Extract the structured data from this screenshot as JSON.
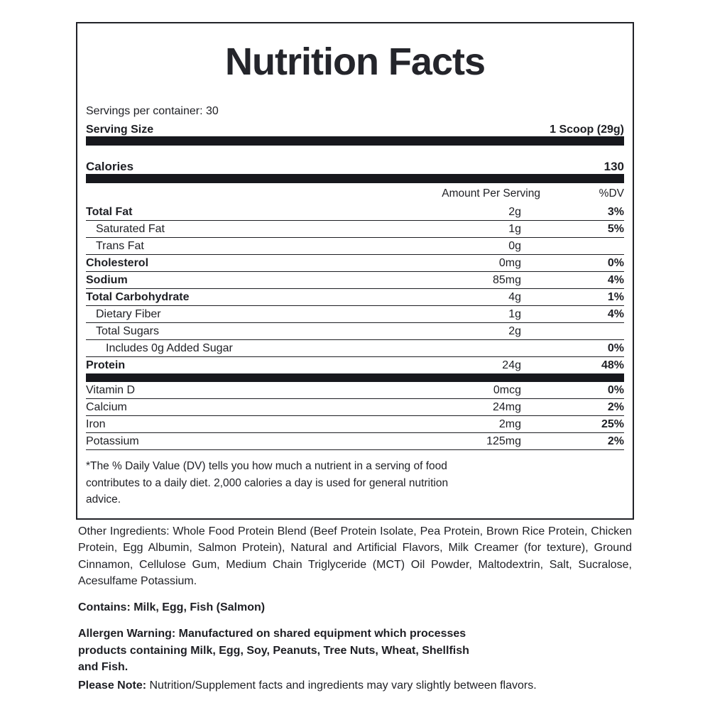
{
  "label": {
    "title": "Nutrition Facts",
    "servings_per_container": "Servings per container: 30",
    "serving_size_label": "Serving Size",
    "serving_size_value": "1 Scoop (29g)",
    "calories_label": "Calories",
    "calories_value": "130",
    "columns": {
      "amount_header": "Amount Per Serving",
      "dv_header": "%DV"
    },
    "nutrients": [
      {
        "name": "Total Fat",
        "amount": "2g",
        "dv": "3%",
        "bold": true,
        "indent": 0
      },
      {
        "name": "Saturated Fat",
        "amount": "1g",
        "dv": "5%",
        "bold": false,
        "indent": 1
      },
      {
        "name": "Trans Fat",
        "amount": "0g",
        "dv": "",
        "bold": false,
        "indent": 1
      },
      {
        "name": "Cholesterol",
        "amount": "0mg",
        "dv": "0%",
        "bold": true,
        "indent": 0
      },
      {
        "name": "Sodium",
        "amount": "85mg",
        "dv": "4%",
        "bold": true,
        "indent": 0
      },
      {
        "name": "Total Carbohydrate",
        "amount": "4g",
        "dv": "1%",
        "bold": true,
        "indent": 0
      },
      {
        "name": "Dietary Fiber",
        "amount": "1g",
        "dv": "4%",
        "bold": false,
        "indent": 1
      },
      {
        "name": "Total Sugars",
        "amount": "2g",
        "dv": "",
        "bold": false,
        "indent": 1
      },
      {
        "name": "Includes 0g Added Sugar",
        "amount": "",
        "dv": "0%",
        "bold": false,
        "indent": 2
      },
      {
        "name": "Protein",
        "amount": "24g",
        "dv": "48%",
        "bold": true,
        "indent": 0
      }
    ],
    "micronutrients": [
      {
        "name": "Vitamin D",
        "amount": "0mcg",
        "dv": "0%",
        "bold": false,
        "indent": 0
      },
      {
        "name": "Calcium",
        "amount": "24mg",
        "dv": "2%",
        "bold": false,
        "indent": 0
      },
      {
        "name": "Iron",
        "amount": "2mg",
        "dv": "25%",
        "bold": false,
        "indent": 0
      },
      {
        "name": "Potassium",
        "amount": "125mg",
        "dv": "2%",
        "bold": false,
        "indent": 0
      }
    ],
    "footnote": "*The % Daily Value (DV) tells you how much a nutrient in a serving of food\ncontributes to a daily diet. 2,000 calories a day is used for general nutrition\nadvice."
  },
  "details": {
    "other_ingredients": "Other Ingredients: Whole Food Protein Blend (Beef Protein Isolate, Pea Protein, Brown Rice Protein, Chicken Protein, Egg Albumin, Salmon Protein), Natural and Artificial Flavors, Milk Creamer (for texture), Ground Cinnamon, Cellulose Gum, Medium Chain Triglyceride (MCT) Oil Powder, Maltodextrin, Salt, Sucralose, Acesulfame Potassium.",
    "contains": "Contains: Milk, Egg, Fish (Salmon)",
    "allergen_warning": "Allergen Warning: Manufactured on shared equipment which processes\nproducts containing Milk, Egg, Soy, Peanuts, Tree Nuts, Wheat, Shellfish\nand Fish.",
    "please_note_label": "Please Note:",
    "please_note_text": " Nutrition/Supplement facts and ingredients may vary slightly between flavors."
  },
  "colors": {
    "text": "#1e1f24",
    "bar": "#17181d",
    "rule": "#1c1d22",
    "border": "#212228"
  }
}
